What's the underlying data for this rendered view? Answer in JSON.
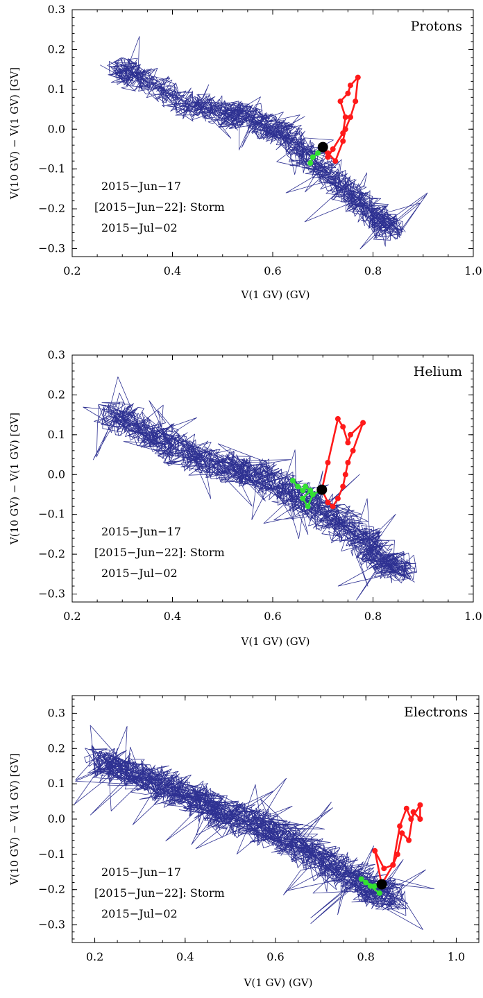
{
  "colors": {
    "trajectory": "#2e3192",
    "storm_before": "#ff1a1a",
    "storm_after": "#33e033",
    "storm_marker": "#000000"
  },
  "chart_data": [
    {
      "type": "line",
      "species": "Protons",
      "xlabel": "V(1 GV)   (GV)",
      "ylabel": "V(10 GV) − V(1 GV)   [GV]",
      "xlim": [
        0.2,
        1.0
      ],
      "ylim": [
        -0.32,
        0.3
      ],
      "xticks": [
        "0.2",
        "0.4",
        "0.6",
        "0.8",
        "1.0"
      ],
      "yticks": [
        "−0.3",
        "−0.2",
        "−0.1",
        "0.0",
        "0.1",
        "0.2",
        "0.3"
      ],
      "xtick_values": [
        0.2,
        0.4,
        0.6,
        0.8,
        1.0
      ],
      "ytick_values": [
        -0.3,
        -0.2,
        -0.1,
        0.0,
        0.1,
        0.2,
        0.3
      ],
      "annotations": [
        "2015−Jun−17",
        "[2015−Jun−22]: Storm",
        "2015−Jul−02"
      ],
      "trajectory_path": [
        [
          0.29,
          0.15
        ],
        [
          0.31,
          0.14
        ],
        [
          0.33,
          0.13
        ],
        [
          0.36,
          0.11
        ],
        [
          0.39,
          0.09
        ],
        [
          0.42,
          0.07
        ],
        [
          0.45,
          0.05
        ],
        [
          0.47,
          0.06
        ],
        [
          0.5,
          0.04
        ],
        [
          0.52,
          0.03
        ],
        [
          0.54,
          0.04
        ],
        [
          0.56,
          0.03
        ],
        [
          0.58,
          0.01
        ],
        [
          0.6,
          0.0
        ],
        [
          0.62,
          -0.01
        ],
        [
          0.64,
          -0.03
        ],
        [
          0.66,
          -0.06
        ],
        [
          0.68,
          -0.08
        ],
        [
          0.7,
          -0.1
        ],
        [
          0.72,
          -0.13
        ],
        [
          0.74,
          -0.15
        ],
        [
          0.76,
          -0.17
        ],
        [
          0.78,
          -0.19
        ],
        [
          0.8,
          -0.21
        ],
        [
          0.82,
          -0.23
        ],
        [
          0.83,
          -0.25
        ],
        [
          0.84,
          -0.24
        ]
      ],
      "trajectory_spread": 0.05,
      "trajectory_segments": 1400,
      "storm_marker": [
        0.7,
        -0.045
      ],
      "red_series": {
        "x": [
          0.7,
          0.71,
          0.72,
          0.74,
          0.745,
          0.735,
          0.75,
          0.755,
          0.77,
          0.765,
          0.755,
          0.745,
          0.74,
          0.725,
          0.71,
          0.7
        ],
        "y": [
          -0.045,
          -0.07,
          -0.05,
          -0.01,
          0.03,
          0.07,
          0.09,
          0.11,
          0.13,
          0.07,
          0.03,
          0.0,
          -0.03,
          -0.08,
          -0.06,
          -0.045
        ]
      },
      "green_series": {
        "x": [
          0.7,
          0.69,
          0.68,
          0.675
        ],
        "y": [
          -0.045,
          -0.06,
          -0.07,
          -0.085
        ]
      }
    },
    {
      "type": "line",
      "species": "Helium",
      "xlabel": "V(1 GV)   (GV)",
      "ylabel": "V(10 GV) − V(1 GV)   [GV]",
      "xlim": [
        0.2,
        1.0
      ],
      "ylim": [
        -0.32,
        0.3
      ],
      "xticks": [
        "0.2",
        "0.4",
        "0.6",
        "0.8",
        "1.0"
      ],
      "yticks": [
        "−0.3",
        "−0.2",
        "−0.1",
        "0.0",
        "0.1",
        "0.2",
        "0.3"
      ],
      "xtick_values": [
        0.2,
        0.4,
        0.6,
        0.8,
        1.0
      ],
      "ytick_values": [
        -0.3,
        -0.2,
        -0.1,
        0.0,
        0.1,
        0.2,
        0.3
      ],
      "annotations": [
        "2015−Jun−17",
        "[2015−Jun−22]: Storm",
        "2015−Jul−02"
      ],
      "trajectory_path": [
        [
          0.28,
          0.15
        ],
        [
          0.3,
          0.14
        ],
        [
          0.33,
          0.12
        ],
        [
          0.36,
          0.1
        ],
        [
          0.39,
          0.08
        ],
        [
          0.42,
          0.06
        ],
        [
          0.45,
          0.04
        ],
        [
          0.48,
          0.03
        ],
        [
          0.51,
          0.02
        ],
        [
          0.54,
          0.01
        ],
        [
          0.57,
          0.0
        ],
        [
          0.6,
          -0.02
        ],
        [
          0.63,
          -0.04
        ],
        [
          0.66,
          -0.06
        ],
        [
          0.69,
          -0.08
        ],
        [
          0.72,
          -0.11
        ],
        [
          0.75,
          -0.14
        ],
        [
          0.78,
          -0.17
        ],
        [
          0.8,
          -0.19
        ],
        [
          0.82,
          -0.21
        ],
        [
          0.84,
          -0.23
        ],
        [
          0.86,
          -0.24
        ]
      ],
      "trajectory_spread": 0.06,
      "trajectory_segments": 1500,
      "storm_marker": [
        0.698,
        -0.038
      ],
      "red_series": {
        "x": [
          0.698,
          0.71,
          0.73,
          0.74,
          0.75,
          0.755,
          0.78,
          0.76,
          0.75,
          0.745,
          0.74,
          0.73,
          0.72,
          0.71,
          0.698
        ],
        "y": [
          -0.038,
          0.03,
          0.14,
          0.12,
          0.08,
          0.1,
          0.13,
          0.06,
          0.03,
          0.0,
          -0.03,
          -0.06,
          -0.08,
          -0.07,
          -0.038
        ]
      },
      "green_series": {
        "x": [
          0.698,
          0.68,
          0.67,
          0.66,
          0.675,
          0.665,
          0.66,
          0.65,
          0.64
        ],
        "y": [
          -0.038,
          -0.05,
          -0.08,
          -0.06,
          -0.04,
          -0.03,
          -0.04,
          -0.03,
          -0.015
        ]
      }
    },
    {
      "type": "line",
      "species": "Electrons",
      "xlabel": "V(1 GV)   (GV)",
      "ylabel": "V(10 GV) − V(1 GV)   [GV]",
      "xlim": [
        0.15,
        1.05
      ],
      "ylim": [
        -0.35,
        0.35
      ],
      "xticks": [
        "0.2",
        "0.4",
        "0.6",
        "0.8",
        "1.0"
      ],
      "yticks": [
        "−0.3",
        "−0.2",
        "−0.1",
        "0.0",
        "0.1",
        "0.2",
        "0.3"
      ],
      "xtick_values": [
        0.2,
        0.4,
        0.6,
        0.8,
        1.0
      ],
      "ytick_values": [
        -0.3,
        -0.2,
        -0.1,
        0.0,
        0.1,
        0.2,
        0.3
      ],
      "annotations": [
        "2015−Jun−17",
        "[2015−Jun−22]: Storm",
        "2015−Jul−02"
      ],
      "trajectory_path": [
        [
          0.21,
          0.17
        ],
        [
          0.24,
          0.15
        ],
        [
          0.28,
          0.13
        ],
        [
          0.32,
          0.11
        ],
        [
          0.36,
          0.09
        ],
        [
          0.4,
          0.07
        ],
        [
          0.44,
          0.05
        ],
        [
          0.48,
          0.02
        ],
        [
          0.52,
          0.0
        ],
        [
          0.56,
          -0.02
        ],
        [
          0.6,
          -0.04
        ],
        [
          0.64,
          -0.07
        ],
        [
          0.68,
          -0.1
        ],
        [
          0.72,
          -0.13
        ],
        [
          0.76,
          -0.16
        ],
        [
          0.8,
          -0.19
        ],
        [
          0.83,
          -0.21
        ],
        [
          0.86,
          -0.22
        ]
      ],
      "trajectory_spread": 0.07,
      "trajectory_segments": 1700,
      "storm_marker": [
        0.835,
        -0.185
      ],
      "red_series": {
        "x": [
          0.835,
          0.86,
          0.875,
          0.89,
          0.9,
          0.92,
          0.92,
          0.905,
          0.895,
          0.88,
          0.87,
          0.86,
          0.84,
          0.82,
          0.835
        ],
        "y": [
          -0.185,
          -0.13,
          -0.02,
          0.03,
          0.0,
          0.04,
          0.0,
          0.02,
          -0.06,
          -0.04,
          -0.1,
          -0.13,
          -0.14,
          -0.09,
          -0.185
        ]
      },
      "green_series": {
        "x": [
          0.835,
          0.82,
          0.8,
          0.79,
          0.81,
          0.83
        ],
        "y": [
          -0.185,
          -0.19,
          -0.18,
          -0.17,
          -0.19,
          -0.21
        ]
      }
    }
  ]
}
